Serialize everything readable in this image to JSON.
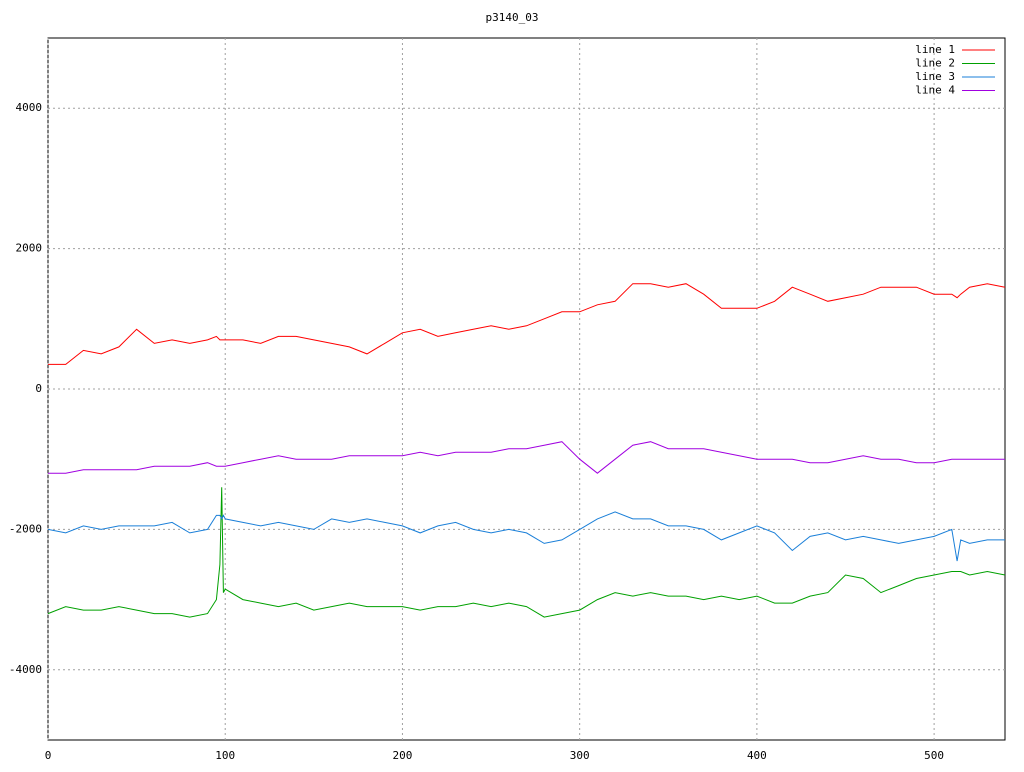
{
  "chart_data": {
    "type": "line",
    "title": "p3140_03",
    "x": [
      0,
      10,
      20,
      30,
      40,
      50,
      60,
      70,
      80,
      90,
      95,
      97,
      98,
      99,
      100,
      110,
      120,
      130,
      140,
      150,
      160,
      170,
      180,
      190,
      200,
      210,
      220,
      230,
      240,
      250,
      260,
      270,
      280,
      290,
      300,
      310,
      320,
      330,
      340,
      350,
      360,
      370,
      380,
      390,
      400,
      410,
      420,
      430,
      440,
      450,
      460,
      470,
      480,
      490,
      500,
      510,
      513,
      515,
      520,
      530,
      540
    ],
    "series": [
      {
        "name": "line 1",
        "color": "#ff0000",
        "values": [
          350,
          350,
          550,
          500,
          600,
          850,
          650,
          700,
          650,
          700,
          750,
          700,
          700,
          700,
          700,
          700,
          650,
          750,
          750,
          700,
          650,
          600,
          500,
          650,
          800,
          850,
          750,
          800,
          850,
          900,
          850,
          900,
          1000,
          1100,
          1100,
          1200,
          1250,
          1500,
          1500,
          1450,
          1500,
          1350,
          1150,
          1150,
          1150,
          1250,
          1450,
          1350,
          1250,
          1300,
          1350,
          1450,
          1450,
          1450,
          1350,
          1350,
          1300,
          1350,
          1450,
          1500,
          1450
        ]
      },
      {
        "name": "line 2",
        "color": "#00a000",
        "values": [
          -3200,
          -3100,
          -3150,
          -3150,
          -3100,
          -3150,
          -3200,
          -3200,
          -3250,
          -3200,
          -3000,
          -2500,
          -1400,
          -2900,
          -2850,
          -3000,
          -3050,
          -3100,
          -3050,
          -3150,
          -3100,
          -3050,
          -3100,
          -3100,
          -3100,
          -3150,
          -3100,
          -3100,
          -3050,
          -3100,
          -3050,
          -3100,
          -3250,
          -3200,
          -3150,
          -3000,
          -2900,
          -2950,
          -2900,
          -2950,
          -2950,
          -3000,
          -2950,
          -3000,
          -2950,
          -3050,
          -3050,
          -2950,
          -2900,
          -2650,
          -2700,
          -2900,
          -2800,
          -2700,
          -2650,
          -2600,
          -2600,
          -2600,
          -2650,
          -2600,
          -2650
        ]
      },
      {
        "name": "line 3",
        "color": "#1a7fd8",
        "values": [
          -2000,
          -2050,
          -1950,
          -2000,
          -1950,
          -1950,
          -1950,
          -1900,
          -2050,
          -2000,
          -1800,
          -1800,
          -1850,
          -1800,
          -1850,
          -1900,
          -1950,
          -1900,
          -1950,
          -2000,
          -1850,
          -1900,
          -1850,
          -1900,
          -1950,
          -2050,
          -1950,
          -1900,
          -2000,
          -2050,
          -2000,
          -2050,
          -2200,
          -2150,
          -2000,
          -1850,
          -1750,
          -1850,
          -1850,
          -1950,
          -1950,
          -2000,
          -2150,
          -2050,
          -1950,
          -2050,
          -2300,
          -2100,
          -2050,
          -2150,
          -2100,
          -2150,
          -2200,
          -2150,
          -2100,
          -2000,
          -2450,
          -2150,
          -2200,
          -2150,
          -2150
        ]
      },
      {
        "name": "line 4",
        "color": "#a000e0",
        "values": [
          -1200,
          -1200,
          -1150,
          -1150,
          -1150,
          -1150,
          -1100,
          -1100,
          -1100,
          -1050,
          -1100,
          -1100,
          -1100,
          -1100,
          -1100,
          -1050,
          -1000,
          -950,
          -1000,
          -1000,
          -1000,
          -950,
          -950,
          -950,
          -950,
          -900,
          -950,
          -900,
          -900,
          -900,
          -850,
          -850,
          -800,
          -750,
          -1000,
          -1200,
          -1000,
          -800,
          -750,
          -850,
          -850,
          -850,
          -900,
          -950,
          -1000,
          -1000,
          -1000,
          -1050,
          -1050,
          -1000,
          -950,
          -1000,
          -1000,
          -1050,
          -1050,
          -1000,
          -1000,
          -1000,
          -1000,
          -1000,
          -1000
        ]
      }
    ],
    "xlim": [
      0,
      540
    ],
    "xticks": [
      0,
      100,
      200,
      300,
      400,
      500
    ],
    "ylim": [
      -5000,
      5000
    ],
    "yticks": [
      -4000,
      -2000,
      0,
      2000,
      4000
    ],
    "grid": true,
    "legend": "top-right"
  }
}
